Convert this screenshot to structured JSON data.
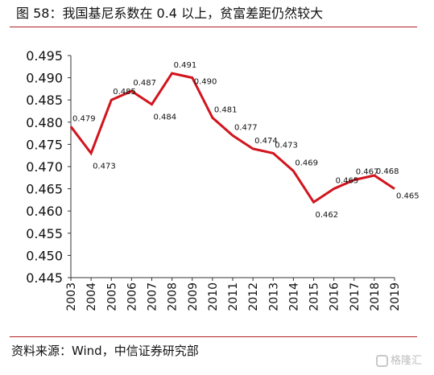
{
  "header": {
    "title": "图 58：我国基尼系数在 0.4 以上，贫富差距仍然较大"
  },
  "footer": {
    "source": "资料来源：Wind，中信证券研究部"
  },
  "watermark": {
    "text": "格隆汇",
    "icon": "watermark-logo-icon"
  },
  "colors": {
    "line": "#d2141e",
    "rule": "#b22222",
    "axis": "#333333"
  },
  "chart_data": {
    "type": "line",
    "title": "",
    "xlabel": "",
    "ylabel": "",
    "ylim": [
      0.445,
      0.495
    ],
    "yticks": [
      "0.445",
      "0.450",
      "0.455",
      "0.460",
      "0.465",
      "0.470",
      "0.475",
      "0.480",
      "0.485",
      "0.490",
      "0.495"
    ],
    "categories": [
      "2003",
      "2004",
      "2005",
      "2006",
      "2007",
      "2008",
      "2009",
      "2010",
      "2011",
      "2012",
      "2013",
      "2014",
      "2015",
      "2016",
      "2017",
      "2018",
      "2019"
    ],
    "values": [
      0.479,
      0.473,
      0.485,
      0.487,
      0.484,
      0.491,
      0.49,
      0.481,
      0.477,
      0.474,
      0.473,
      0.469,
      0.462,
      0.465,
      0.467,
      0.468,
      0.465
    ],
    "labels": [
      "0.479",
      "0.473",
      "0.485",
      "0.487",
      "0.484",
      "0.491",
      "0.490",
      "0.481",
      "0.477",
      "0.474",
      "0.473",
      "0.469",
      "0.462",
      "0.465",
      "0.467",
      "0.468",
      "0.465"
    ],
    "grid": false,
    "legend": "none"
  }
}
